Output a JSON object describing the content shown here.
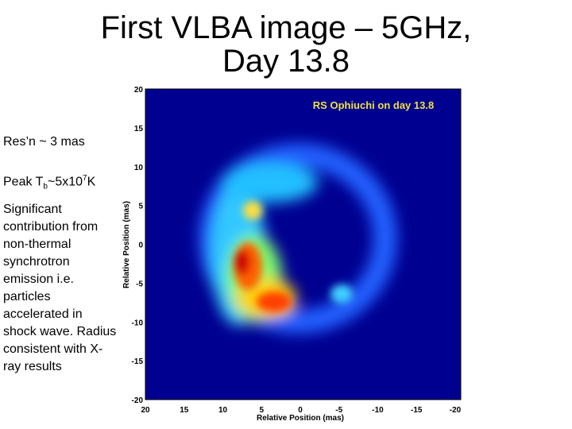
{
  "slide": {
    "title": "First VLBA image – 5GHz, Day 13.8",
    "bullets": [
      {
        "parts": [
          {
            "text": "Res’n ~ 3 mas"
          }
        ]
      },
      {
        "parts": [
          {
            "text": "Peak T"
          },
          {
            "text": "b",
            "style": "sub"
          },
          {
            "text": "~5x10"
          },
          {
            "text": "7",
            "style": "sup"
          },
          {
            "text": "K"
          }
        ]
      },
      {
        "parts": [
          {
            "text": "Significant contribution from non-thermal synchrotron emission i.e. particles accelerated in shock wave. Radius consistent with X-ray results"
          }
        ]
      }
    ],
    "figure": {
      "caption": "RS Ophiuchi on day 13.8",
      "x_label": "Relative Position (mas)",
      "y_label": "Relative Position (mas)",
      "x_ticks": [
        20,
        15,
        10,
        5,
        0,
        -5,
        -10,
        -15,
        -20
      ],
      "y_ticks": [
        20,
        15,
        10,
        5,
        0,
        -5,
        -10,
        -15,
        -20
      ]
    }
  }
}
